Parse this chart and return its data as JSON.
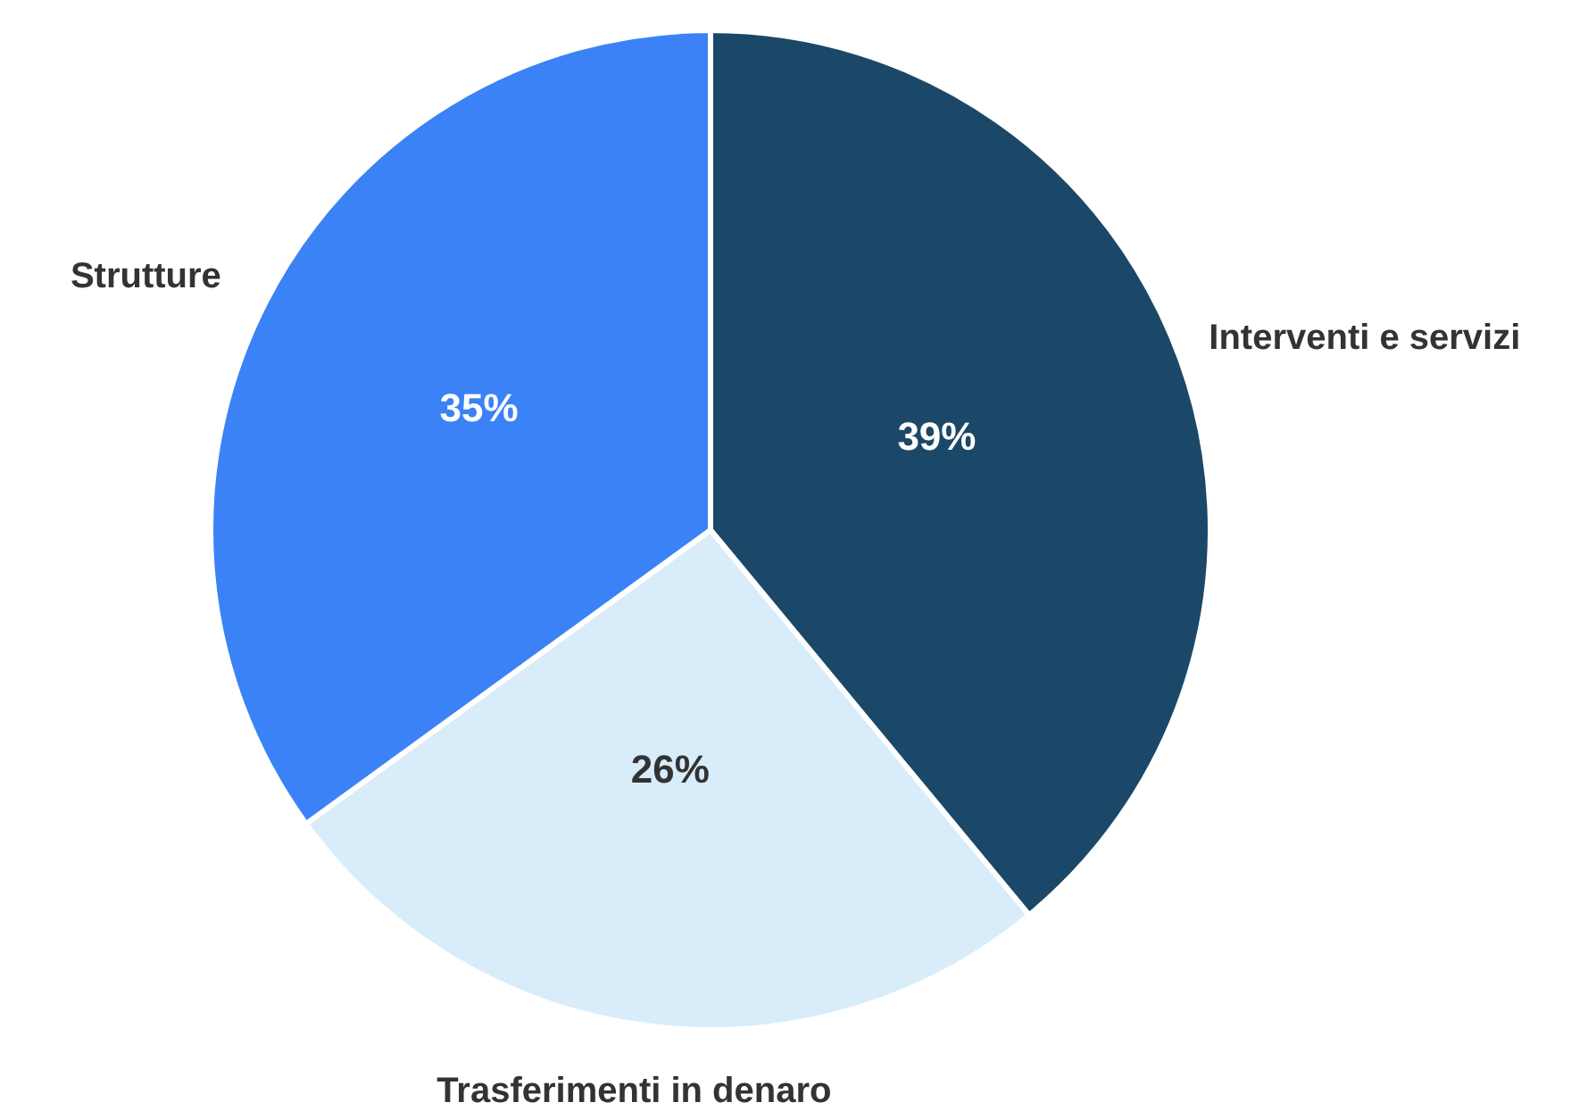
{
  "chart_data": {
    "type": "pie",
    "categories": [
      "Interventi e servizi",
      "Trasferimenti in denaro",
      "Strutture"
    ],
    "values": [
      39,
      26,
      35
    ],
    "colors": [
      "#1b4868",
      "#d8ecfa",
      "#3b82f6"
    ],
    "value_labels": [
      "39%",
      "26%",
      "35%"
    ],
    "legend": false
  }
}
